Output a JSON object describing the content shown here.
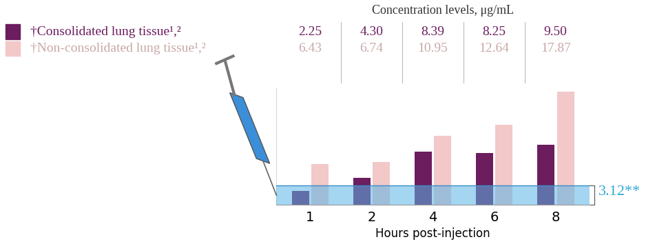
{
  "chart_data": {
    "type": "bar",
    "title": "Concentration levels, μg/mL",
    "x_label": "Hours post-injection",
    "categories": [
      "1",
      "2",
      "4",
      "6",
      "8"
    ],
    "series": [
      {
        "name": "†Consolidated lung tissue¹,²",
        "color": "#6b1d5e",
        "values": [
          2.25,
          4.3,
          8.39,
          8.25,
          9.5
        ],
        "value_labels": [
          "2.25",
          "4.30",
          "8.39",
          "8.25",
          "9.50"
        ]
      },
      {
        "name": "†Non-consolidated lung tissue¹,²",
        "color": "#f2c8c8",
        "values": [
          6.43,
          6.74,
          10.95,
          12.64,
          17.87
        ],
        "value_labels": [
          "6.43",
          "6.74",
          "10.95",
          "12.64",
          "17.87"
        ]
      }
    ],
    "reference_band": {
      "value": 3.12,
      "label": "3.12**",
      "color": "#5ab4e6"
    },
    "ylim": [
      0,
      18.5
    ],
    "yticks": [],
    "data_labels": true,
    "tick_labels": "x"
  }
}
